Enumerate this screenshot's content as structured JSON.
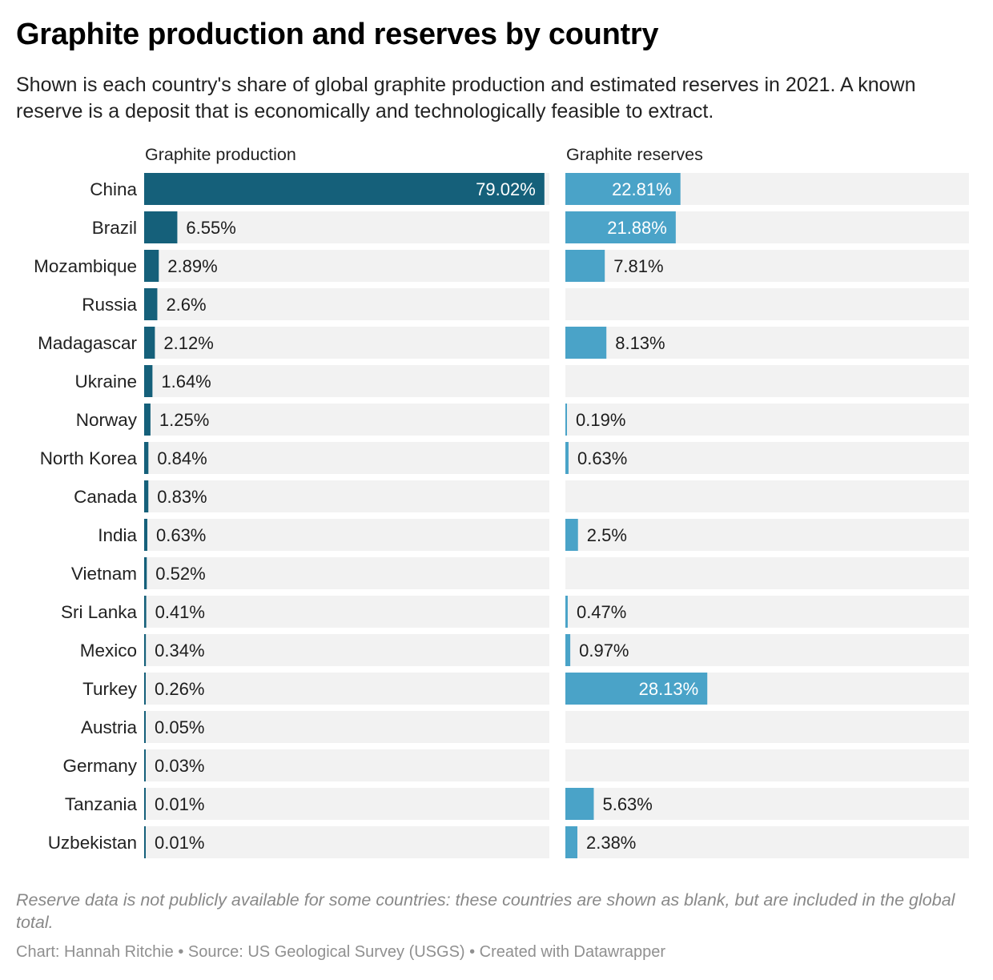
{
  "title": "Graphite production and reserves by country",
  "subtitle": "Shown is each country's share of global graphite production and estimated reserves in 2021. A known reserve is a deposit that is economically and technologically feasible to extract.",
  "notes": "Reserve data is not publicly available for some countries: these countries are shown as blank, but are included in the global total.",
  "byline": "Chart: Hannah Ritchie • Source: US Geological Survey (USGS) • Created with Datawrapper",
  "colors": {
    "production": "#15607a",
    "reserves": "#4aa3c8",
    "track": "#f2f2f2"
  },
  "chart_data": {
    "type": "bar",
    "orientation": "horizontal",
    "unit": "%",
    "categories": [
      "China",
      "Brazil",
      "Mozambique",
      "Russia",
      "Madagascar",
      "Ukraine",
      "Norway",
      "North Korea",
      "Canada",
      "India",
      "Vietnam",
      "Sri Lanka",
      "Mexico",
      "Turkey",
      "Austria",
      "Germany",
      "Tanzania",
      "Uzbekistan"
    ],
    "series": [
      {
        "name": "Graphite production",
        "values": [
          79.02,
          6.55,
          2.89,
          2.6,
          2.12,
          1.64,
          1.25,
          0.84,
          0.83,
          0.63,
          0.52,
          0.41,
          0.34,
          0.26,
          0.05,
          0.03,
          0.01,
          0.01
        ],
        "labels": [
          "79.02%",
          "6.55%",
          "2.89%",
          "2.6%",
          "2.12%",
          "1.64%",
          "1.25%",
          "0.84%",
          "0.83%",
          "0.63%",
          "0.52%",
          "0.41%",
          "0.34%",
          "0.26%",
          "0.05%",
          "0.03%",
          "0.01%",
          "0.01%"
        ]
      },
      {
        "name": "Graphite reserves",
        "values": [
          22.81,
          21.88,
          7.81,
          null,
          8.13,
          null,
          0.19,
          0.63,
          null,
          2.5,
          null,
          0.47,
          0.97,
          28.13,
          null,
          null,
          5.63,
          2.38
        ],
        "labels": [
          "22.81%",
          "21.88%",
          "7.81%",
          "",
          "8.13%",
          "",
          "0.19%",
          "0.63%",
          "",
          "2.5%",
          "",
          "0.47%",
          "0.97%",
          "28.13%",
          "",
          "",
          "5.63%",
          "2.38%"
        ]
      }
    ],
    "xlim": [
      0,
      80
    ],
    "grid": false,
    "legend": "none"
  }
}
